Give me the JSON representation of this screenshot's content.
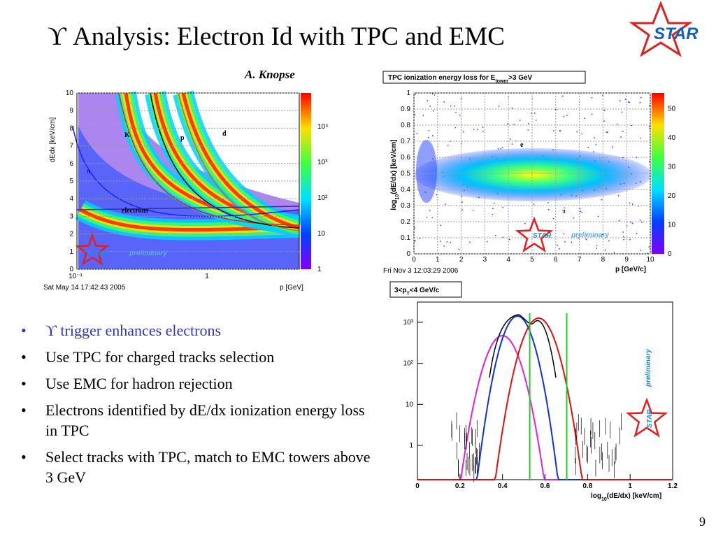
{
  "title": "ϒ Analysis: Electron Id with TPC and EMC",
  "author": "A. Knopse",
  "logo": "STAR",
  "bullets": [
    "ϒ trigger enhances electrons",
    "Use TPC for charged tracks selection",
    "Use EMC for hadron rejection",
    "Electrons identified by dE/dx ionization energy loss in TPC",
    "Select tracks with TPC, match to EMC towers above 3 GeV"
  ],
  "page_number": "9",
  "plots": [
    {
      "y_label": "dEdx [keV/cm]",
      "x_label": "p [GeV]",
      "timestamp": "Sat May 14 17:42:43 2005",
      "y_ticks": [
        "0",
        "1",
        "2",
        "3",
        "4",
        "5",
        "6",
        "7",
        "8",
        "9",
        "10"
      ],
      "x_ticks": [
        "10⁻¹",
        "1"
      ],
      "colorbar_ticks": [
        "1",
        "10",
        "10²",
        "10³",
        "10⁴"
      ],
      "annotations": [
        "K",
        "p",
        "d",
        "π",
        "electrons"
      ],
      "star": "STAR",
      "preliminary": "preliminary"
    },
    {
      "title": [
        "TPC ionization energy loss for E",
        "tower",
        ">3 GeV"
      ],
      "y_label": [
        "log",
        "10",
        "(dE/dx) [keV/cm]"
      ],
      "x_label": "p [GeV/c]",
      "timestamp": "Fri Nov  3 12:03:29 2006",
      "y_ticks": [
        "0",
        "0.1",
        "0.2",
        "0.3",
        "0.4",
        "0.5",
        "0.6",
        "0.7",
        "0.8",
        "0.9",
        "1"
      ],
      "x_ticks": [
        "0",
        "1",
        "2",
        "3",
        "4",
        "5",
        "6",
        "7",
        "8",
        "9",
        "10"
      ],
      "colorbar_ticks": [
        "0",
        "10",
        "20",
        "30",
        "40",
        "50"
      ],
      "annotations": [
        "e",
        "π"
      ],
      "star": "STAR",
      "preliminary": "preliminary"
    },
    {
      "title": [
        "3<p",
        "T",
        "<4 GeV/c"
      ],
      "x_label": [
        "log",
        "10",
        "(dE/dx) [keV/cm]"
      ],
      "y_ticks": [
        "1",
        "10",
        "10²",
        "10³"
      ],
      "x_ticks": [
        "0",
        "0.2",
        "0.4",
        "0.6",
        "0.8",
        "1",
        "1.2"
      ],
      "star": "STAR",
      "preliminary": "preliminary"
    }
  ]
}
